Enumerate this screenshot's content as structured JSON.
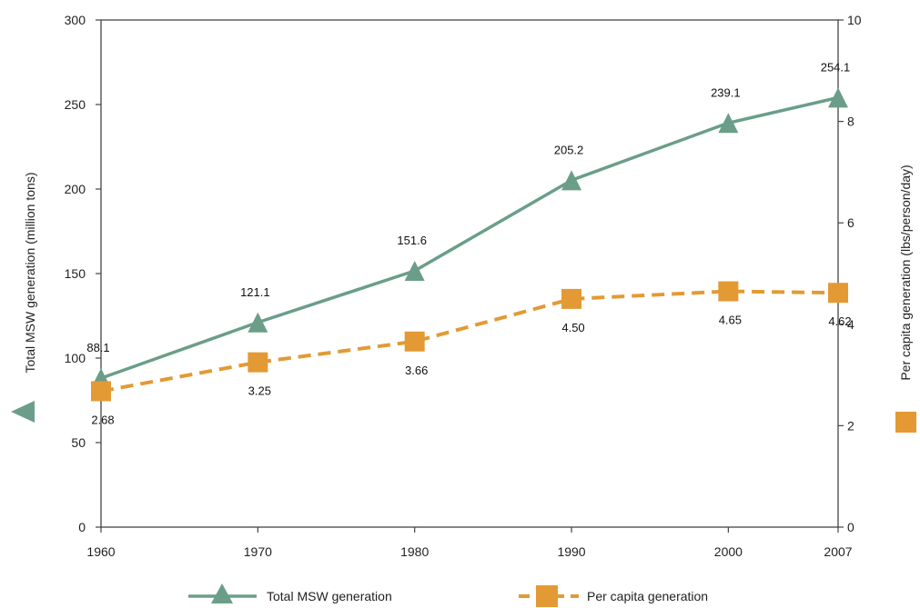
{
  "chart_data": {
    "type": "line",
    "x": [
      "1960",
      "1970",
      "1980",
      "1990",
      "2000",
      "2007"
    ],
    "x_values": [
      1960,
      1970,
      1980,
      1990,
      2000,
      2007
    ],
    "left_axis": {
      "label": "Total MSW generation (million tons)",
      "ylim": [
        0,
        300
      ],
      "ticks": [
        0,
        50,
        100,
        150,
        200,
        250,
        300
      ]
    },
    "right_axis": {
      "label": "Per capita generation (lbs/person/day)",
      "ylim": [
        0,
        10
      ],
      "ticks": [
        0,
        2,
        4,
        6,
        8,
        10
      ]
    },
    "series": [
      {
        "name": "Total MSW generation",
        "axis": "left",
        "marker": "triangle",
        "line_style": "solid",
        "color": "#6a9e88",
        "values": [
          88.1,
          121.1,
          151.6,
          205.2,
          239.1,
          254.1
        ],
        "labels": [
          "88.1",
          "121.1",
          "151.6",
          "205.2",
          "239.1",
          "254.1"
        ]
      },
      {
        "name": "Per capita generation",
        "axis": "right",
        "marker": "square",
        "line_style": "dashed",
        "color": "#e39a34",
        "values": [
          2.68,
          3.25,
          3.66,
          4.5,
          4.65,
          4.62
        ],
        "labels": [
          "2.68",
          "3.25",
          "3.66",
          "4.50",
          "4.65",
          "4.62"
        ]
      }
    ],
    "grid": false,
    "legend_position": "bottom"
  }
}
